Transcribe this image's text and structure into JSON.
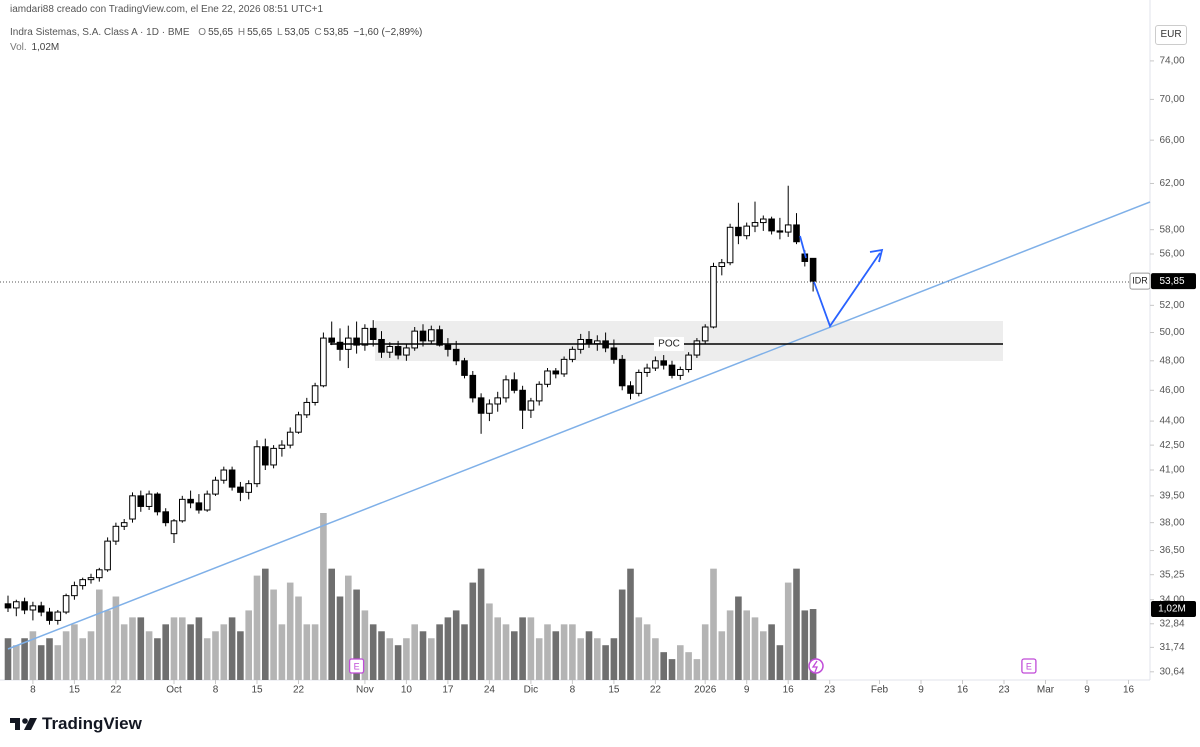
{
  "header": {
    "credit": "iamdari88 creado con TradingView.com, el Ene 22, 2026 08:51 UTC+1",
    "symbol": "Indra Sistemas, S.A. Class A · 1D · BME",
    "ohlc": [
      [
        "O",
        "55,65"
      ],
      [
        "H",
        "55,65"
      ],
      [
        "L",
        "53,05"
      ],
      [
        "C",
        "53,85"
      ]
    ],
    "change": "−1,60 (−2,89%)",
    "volume_label": "Vol.",
    "volume_value": "1,02M"
  },
  "currency_button": "EUR",
  "chart_data": {
    "type": "candlestick",
    "log_scale": true,
    "ylim": [
      30.28,
      78.5
    ],
    "yticks": [
      {
        "value": 74,
        "label": "74,00"
      },
      {
        "value": 70,
        "label": "70,00"
      },
      {
        "value": 66,
        "label": "66,00"
      },
      {
        "value": 62,
        "label": "62,00"
      },
      {
        "value": 58,
        "label": "58,00"
      },
      {
        "value": 56,
        "label": "56,00"
      },
      {
        "value": 52,
        "label": "52,00"
      },
      {
        "value": 50,
        "label": "50,00"
      },
      {
        "value": 48,
        "label": "48,00"
      },
      {
        "value": 46,
        "label": "46,00"
      },
      {
        "value": 44,
        "label": "44,00"
      },
      {
        "value": 42.5,
        "label": "42,50"
      },
      {
        "value": 41,
        "label": "41,00"
      },
      {
        "value": 39.5,
        "label": "39,50"
      },
      {
        "value": 38,
        "label": "38,00"
      },
      {
        "value": 36.5,
        "label": "36,50"
      },
      {
        "value": 35.25,
        "label": "35,25"
      },
      {
        "value": 34,
        "label": "34,00"
      },
      {
        "value": 32.84,
        "label": "32,84"
      },
      {
        "value": 31.74,
        "label": "31,74"
      },
      {
        "value": 30.64,
        "label": "30,64"
      }
    ],
    "xticks": [
      {
        "value": 3,
        "label": "8"
      },
      {
        "value": 8,
        "label": "15"
      },
      {
        "value": 13,
        "label": "22"
      },
      {
        "value": 20,
        "label": "Oct"
      },
      {
        "value": 25,
        "label": "8"
      },
      {
        "value": 30,
        "label": "15"
      },
      {
        "value": 35,
        "label": "22"
      },
      {
        "value": 43,
        "label": "Nov"
      },
      {
        "value": 48,
        "label": "10"
      },
      {
        "value": 53,
        "label": "17"
      },
      {
        "value": 58,
        "label": "24"
      },
      {
        "value": 63,
        "label": "Dic"
      },
      {
        "value": 68,
        "label": "8"
      },
      {
        "value": 73,
        "label": "15"
      },
      {
        "value": 78,
        "label": "22"
      },
      {
        "value": 84,
        "label": "2026"
      },
      {
        "value": 89,
        "label": "9"
      },
      {
        "value": 94,
        "label": "16"
      },
      {
        "value": 99,
        "label": "23"
      },
      {
        "value": 105,
        "label": "Feb"
      },
      {
        "value": 110,
        "label": "9"
      },
      {
        "value": 115,
        "label": "16"
      },
      {
        "value": 120,
        "label": "23"
      },
      {
        "value": 125,
        "label": "Mar"
      },
      {
        "value": 130,
        "label": "9"
      },
      {
        "value": 135,
        "label": "16"
      }
    ],
    "open": [
      33.8,
      33.6,
      33.9,
      33.5,
      33.7,
      33.4,
      33.0,
      33.4,
      34.2,
      34.7,
      35.0,
      35.1,
      35.5,
      37.0,
      37.8,
      38.2,
      39.5,
      38.9,
      39.6,
      38.6,
      37.4,
      38.1,
      39.3,
      39.1,
      38.7,
      39.6,
      40.4,
      41.0,
      40.0,
      39.7,
      40.2,
      42.4,
      41.3,
      42.3,
      42.5,
      43.3,
      44.4,
      45.2,
      46.3,
      49.6,
      49.3,
      48.8,
      49.6,
      49.1,
      50.3,
      49.5,
      48.6,
      49.0,
      48.4,
      48.9,
      50.1,
      49.4,
      50.2,
      49.1,
      48.8,
      48.0,
      47.0,
      45.5,
      44.5,
      45.1,
      45.5,
      46.7,
      46.0,
      44.7,
      45.3,
      46.4,
      47.3,
      47.1,
      48.1,
      48.8,
      49.5,
      49.2,
      49.4,
      48.9,
      48.1,
      46.3,
      45.8,
      47.2,
      47.5,
      48.0,
      47.7,
      47.0,
      47.4,
      48.4,
      49.4,
      50.4,
      55.0,
      55.3,
      58.2,
      57.5,
      58.3,
      58.6,
      58.9,
      57.9,
      57.8,
      58.4,
      56.0,
      55.65
    ],
    "high": [
      34.2,
      34.0,
      34.1,
      33.9,
      33.9,
      33.6,
      33.5,
      34.3,
      34.9,
      35.1,
      35.3,
      35.6,
      37.2,
      38.0,
      38.2,
      39.7,
      39.8,
      39.8,
      39.7,
      38.8,
      38.2,
      39.5,
      39.8,
      39.6,
      39.8,
      40.6,
      41.2,
      41.2,
      40.3,
      40.4,
      42.8,
      42.9,
      42.5,
      42.8,
      43.6,
      44.6,
      45.5,
      46.5,
      50.0,
      50.8,
      50.3,
      50.5,
      50.8,
      50.6,
      50.9,
      50.1,
      49.3,
      49.4,
      49.2,
      50.4,
      50.6,
      50.5,
      50.5,
      49.6,
      49.4,
      48.2,
      47.3,
      45.8,
      45.4,
      45.9,
      47.0,
      47.2,
      46.3,
      45.5,
      46.6,
      47.5,
      47.5,
      48.3,
      49.0,
      49.9,
      50.1,
      49.8,
      50.0,
      49.5,
      48.4,
      46.6,
      47.4,
      47.8,
      48.3,
      48.4,
      48.0,
      47.6,
      48.6,
      49.6,
      50.6,
      55.3,
      55.6,
      58.5,
      60.3,
      58.6,
      60.4,
      59.2,
      59.1,
      59.0,
      61.8,
      59.4,
      56.3,
      55.65
    ],
    "low": [
      33.4,
      33.2,
      33.3,
      33.0,
      33.2,
      32.8,
      32.8,
      33.3,
      34.0,
      34.5,
      34.8,
      34.9,
      35.4,
      36.8,
      37.6,
      38.0,
      38.6,
      38.7,
      38.4,
      37.8,
      36.9,
      38.0,
      38.8,
      38.5,
      38.6,
      39.5,
      40.2,
      39.8,
      39.2,
      39.3,
      40.0,
      41.0,
      41.1,
      41.8,
      42.3,
      43.2,
      44.2,
      45.0,
      46.2,
      49.1,
      48.0,
      47.5,
      48.5,
      48.7,
      49.0,
      48.2,
      48.2,
      48.1,
      48.0,
      48.7,
      49.0,
      49.2,
      49.0,
      48.3,
      47.7,
      46.8,
      45.2,
      43.2,
      44.0,
      44.6,
      45.2,
      45.8,
      43.5,
      44.2,
      45.0,
      46.2,
      46.8,
      46.9,
      47.9,
      48.5,
      48.9,
      48.7,
      48.6,
      47.8,
      46.0,
      45.4,
      45.6,
      46.9,
      47.3,
      47.4,
      46.8,
      46.7,
      47.2,
      48.2,
      49.2,
      50.3,
      54.3,
      55.1,
      56.8,
      57.2,
      57.8,
      57.9,
      57.6,
      57.2,
      57.4,
      56.8,
      55.0,
      53.05
    ],
    "close": [
      33.6,
      33.9,
      33.5,
      33.7,
      33.4,
      33.0,
      33.4,
      34.2,
      34.7,
      35.0,
      35.1,
      35.5,
      37.0,
      37.8,
      38.0,
      39.5,
      38.9,
      39.6,
      38.6,
      38.0,
      38.1,
      39.3,
      39.1,
      38.7,
      39.6,
      40.4,
      41.0,
      40.0,
      39.7,
      40.2,
      42.4,
      41.3,
      42.3,
      42.5,
      43.3,
      44.4,
      45.2,
      46.3,
      49.6,
      49.3,
      48.8,
      49.6,
      49.1,
      50.3,
      49.5,
      48.6,
      49.0,
      48.4,
      48.9,
      50.1,
      49.4,
      50.2,
      49.1,
      48.8,
      48.0,
      47.0,
      45.5,
      44.5,
      45.1,
      45.5,
      46.7,
      46.0,
      44.7,
      45.3,
      46.4,
      47.3,
      47.1,
      48.1,
      48.8,
      49.5,
      49.2,
      49.4,
      48.9,
      48.1,
      46.3,
      45.8,
      47.2,
      47.5,
      48.0,
      47.7,
      47.0,
      47.4,
      48.4,
      49.4,
      50.4,
      55.0,
      55.3,
      58.2,
      57.5,
      58.3,
      58.6,
      58.9,
      57.9,
      57.8,
      58.4,
      57.0,
      55.4,
      53.85
    ],
    "up_color": "#ffffff",
    "down_color": "#000000",
    "outline_color": "#000000",
    "volume": {
      "values": [
        0.6,
        0.5,
        0.6,
        0.7,
        0.5,
        0.6,
        0.5,
        0.7,
        0.8,
        0.6,
        0.7,
        1.3,
        1.0,
        1.2,
        0.8,
        0.9,
        0.9,
        0.7,
        0.6,
        0.8,
        0.9,
        0.9,
        0.8,
        0.9,
        0.6,
        0.7,
        0.8,
        0.9,
        0.7,
        1.0,
        1.5,
        1.6,
        1.3,
        0.8,
        1.4,
        1.2,
        0.8,
        0.8,
        2.4,
        1.6,
        1.2,
        1.5,
        1.3,
        1.0,
        0.8,
        0.7,
        0.6,
        0.5,
        0.6,
        0.8,
        0.7,
        0.6,
        0.8,
        0.9,
        1.0,
        0.8,
        1.4,
        1.6,
        1.1,
        0.9,
        0.8,
        0.7,
        0.9,
        0.9,
        0.6,
        0.8,
        0.7,
        0.8,
        0.8,
        0.6,
        0.7,
        0.6,
        0.5,
        0.6,
        1.3,
        1.6,
        0.9,
        0.8,
        0.6,
        0.4,
        0.3,
        0.5,
        0.4,
        0.3,
        0.8,
        1.6,
        0.7,
        1.0,
        1.2,
        1.0,
        0.9,
        0.7,
        0.8,
        0.5,
        1.4,
        1.6,
        1.0,
        1.02
      ],
      "up_color": "#b4b4b4",
      "down_color": "#6f6f6f",
      "last_label": "1,02M"
    },
    "last_price": {
      "symbol": "IDR",
      "label": "53,85"
    },
    "annotations": {
      "poc": "POC"
    },
    "events": [
      {
        "x": 42,
        "label": "E"
      },
      {
        "x": 123,
        "label": "E"
      }
    ]
  },
  "footer": {
    "brand": "TradingView"
  }
}
